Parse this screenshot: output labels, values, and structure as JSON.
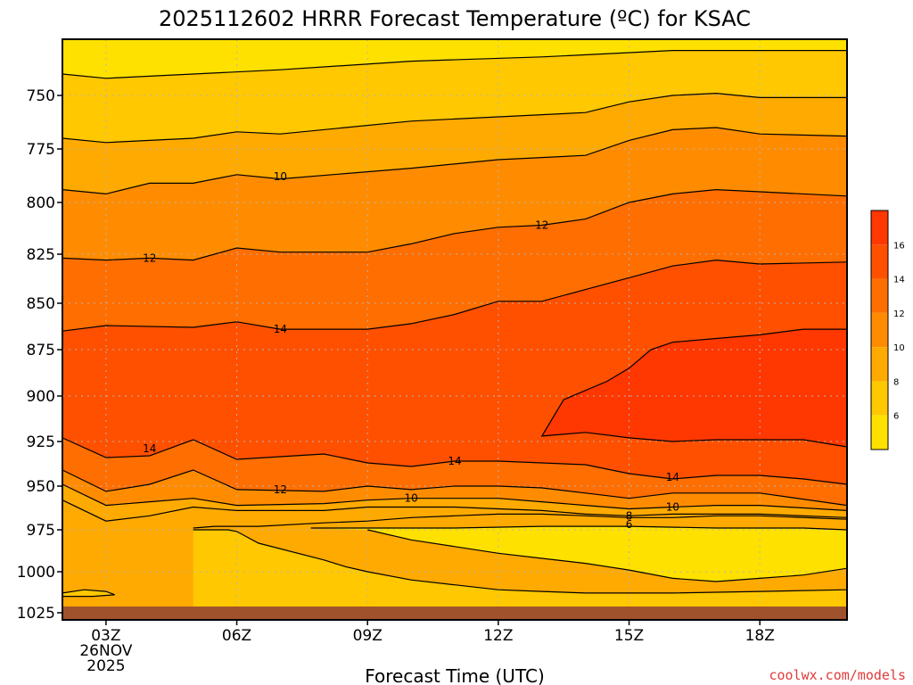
{
  "title": "2025112602 HRRR Forecast Temperature (ºC) for KSAC",
  "credit": "coolwx.com/models",
  "xlabel": "Forecast Time (UTC)",
  "colors": {
    "background": "#ffffff",
    "ground": "#a0522d",
    "levels": [
      "#ffe100",
      "#ffc800",
      "#ffaa00",
      "#ff8c00",
      "#ff6e00",
      "#ff5000",
      "#ff3700"
    ],
    "credit": "#e03a3a"
  },
  "chart_data": {
    "type": "heatmap",
    "title": "2025112602 HRRR Forecast Temperature (ºC) for KSAC",
    "xlabel": "Forecast Time (UTC)",
    "ylabel": "",
    "x_tick_labels": [
      {
        "hour": 3,
        "lines": [
          "03Z",
          "26NOV",
          "2025"
        ]
      },
      {
        "hour": 6,
        "lines": [
          "06Z"
        ]
      },
      {
        "hour": 9,
        "lines": [
          "09Z"
        ]
      },
      {
        "hour": 12,
        "lines": [
          "12Z"
        ]
      },
      {
        "hour": 15,
        "lines": [
          "15Z"
        ]
      },
      {
        "hour": 18,
        "lines": [
          "18Z"
        ]
      }
    ],
    "x_range_hours": [
      2,
      20
    ],
    "y_ticks": [
      750,
      775,
      800,
      825,
      850,
      875,
      900,
      925,
      950,
      975,
      1000,
      1025
    ],
    "y_axis": "pressure (hPa), inverted",
    "colorbar_levels": [
      6,
      8,
      10,
      12,
      14,
      16
    ],
    "contour_labels": [
      "10",
      "12",
      "12",
      "14",
      "14",
      "14",
      "12",
      "10",
      "14",
      "10",
      "8",
      "6"
    ],
    "contours": [
      {
        "value": 6,
        "points": [
          [
            2,
            740
          ],
          [
            3,
            742
          ],
          [
            5,
            740
          ],
          [
            7,
            738
          ],
          [
            10,
            734
          ],
          [
            13,
            732
          ],
          [
            16,
            729
          ],
          [
            19,
            729
          ],
          [
            20,
            729
          ]
        ]
      },
      {
        "value": 8,
        "points": [
          [
            2,
            770
          ],
          [
            3,
            772
          ],
          [
            5,
            770
          ],
          [
            6,
            767
          ],
          [
            7,
            768
          ],
          [
            10,
            762
          ],
          [
            13,
            759
          ],
          [
            14,
            758
          ],
          [
            15,
            753
          ],
          [
            16,
            750
          ],
          [
            17,
            749
          ],
          [
            18,
            751
          ],
          [
            20,
            751
          ]
        ]
      },
      {
        "value": 10,
        "points": [
          [
            2,
            794
          ],
          [
            3,
            796
          ],
          [
            4,
            791
          ],
          [
            5,
            791
          ],
          [
            6,
            787
          ],
          [
            7,
            789
          ],
          [
            10,
            784
          ],
          [
            12,
            780
          ],
          [
            14,
            778
          ],
          [
            15,
            771
          ],
          [
            16,
            766
          ],
          [
            17,
            765
          ],
          [
            18,
            768
          ],
          [
            20,
            769
          ]
        ]
      },
      {
        "value": 12,
        "points": [
          [
            2,
            827
          ],
          [
            3,
            828
          ],
          [
            4,
            827
          ],
          [
            5,
            828
          ],
          [
            6,
            822
          ],
          [
            7,
            824
          ],
          [
            9,
            824
          ],
          [
            10,
            820
          ],
          [
            11,
            815
          ],
          [
            12,
            812
          ],
          [
            13,
            811
          ],
          [
            14,
            808
          ],
          [
            15,
            800
          ],
          [
            16,
            796
          ],
          [
            17,
            794
          ],
          [
            18,
            795
          ],
          [
            20,
            797
          ]
        ]
      },
      {
        "value": 14,
        "points": [
          [
            2,
            865
          ],
          [
            3,
            862
          ],
          [
            5,
            863
          ],
          [
            6,
            860
          ],
          [
            7,
            864
          ],
          [
            9,
            864
          ],
          [
            10,
            861
          ],
          [
            11,
            856
          ],
          [
            12,
            849
          ],
          [
            13,
            849
          ],
          [
            14,
            843
          ],
          [
            15,
            837
          ],
          [
            16,
            831
          ],
          [
            17,
            828
          ],
          [
            18,
            830
          ],
          [
            20,
            829
          ]
        ]
      },
      {
        "value": 16,
        "points": [
          [
            13,
            922
          ],
          [
            13.5,
            902
          ],
          [
            14.5,
            892
          ],
          [
            15,
            885
          ],
          [
            15.5,
            875
          ],
          [
            16,
            871
          ],
          [
            17,
            869
          ],
          [
            18,
            867
          ],
          [
            19,
            864
          ],
          [
            20,
            864
          ],
          [
            20,
            928
          ],
          [
            19,
            924
          ],
          [
            18,
            924
          ],
          [
            17,
            924
          ],
          [
            16,
            925
          ],
          [
            15,
            923
          ],
          [
            14,
            920
          ],
          [
            13,
            922
          ]
        ]
      },
      {
        "value": 14,
        "points": [
          [
            2,
            923
          ],
          [
            3,
            934
          ],
          [
            4,
            933
          ],
          [
            5,
            924
          ],
          [
            6,
            935
          ],
          [
            8,
            932
          ],
          [
            9,
            937
          ],
          [
            10,
            939
          ],
          [
            11,
            936
          ],
          [
            12,
            936
          ],
          [
            13,
            937
          ],
          [
            14,
            938
          ],
          [
            15,
            943
          ],
          [
            16,
            946
          ],
          [
            17,
            944
          ],
          [
            18,
            944
          ],
          [
            19,
            946
          ],
          [
            20,
            949
          ]
        ]
      },
      {
        "value": 12,
        "points": [
          [
            2,
            941
          ],
          [
            3,
            953
          ],
          [
            4,
            949
          ],
          [
            5,
            941
          ],
          [
            6,
            952
          ],
          [
            8,
            953
          ],
          [
            9,
            950
          ],
          [
            10,
            952
          ],
          [
            11,
            950
          ],
          [
            12,
            950
          ],
          [
            13,
            951
          ],
          [
            14,
            954
          ],
          [
            15,
            957
          ],
          [
            16,
            954
          ],
          [
            17,
            954
          ],
          [
            18,
            954
          ],
          [
            20,
            961
          ]
        ]
      },
      {
        "value": 10,
        "points": [
          [
            2,
            949
          ],
          [
            3,
            961
          ],
          [
            4,
            959
          ],
          [
            5,
            957
          ],
          [
            6,
            961
          ],
          [
            8,
            960
          ],
          [
            9,
            958
          ],
          [
            10,
            957
          ],
          [
            11,
            957
          ],
          [
            12,
            957
          ],
          [
            13,
            959
          ],
          [
            14,
            961
          ],
          [
            15,
            963
          ],
          [
            16,
            962
          ],
          [
            17,
            961
          ],
          [
            18,
            961
          ],
          [
            20,
            964
          ]
        ]
      },
      {
        "value": 8,
        "points": [
          [
            2,
            958
          ],
          [
            3,
            970
          ],
          [
            4,
            967
          ],
          [
            5,
            962
          ],
          [
            6,
            964
          ],
          [
            8,
            964
          ],
          [
            9,
            962
          ],
          [
            10,
            962
          ],
          [
            11,
            962
          ],
          [
            12,
            963
          ],
          [
            13,
            964
          ],
          [
            14,
            966
          ],
          [
            15,
            967
          ],
          [
            16,
            966
          ],
          [
            17,
            966
          ],
          [
            18,
            966
          ],
          [
            20,
            968
          ]
        ]
      },
      {
        "value": 6,
        "points": [
          [
            5,
            974
          ],
          [
            5.5,
            973
          ],
          [
            6.5,
            973
          ],
          [
            8,
            971
          ],
          [
            9,
            970
          ],
          [
            10,
            968
          ],
          [
            11,
            967
          ],
          [
            12,
            966
          ],
          [
            13,
            966
          ],
          [
            14,
            967
          ],
          [
            15,
            968
          ],
          [
            16,
            968
          ],
          [
            17,
            967
          ],
          [
            18,
            967
          ],
          [
            20,
            969
          ]
        ]
      },
      {
        "value": 6,
        "points": [
          [
            7.7,
            974
          ],
          [
            9,
            974
          ],
          [
            11,
            974
          ],
          [
            13,
            973
          ],
          [
            15,
            973
          ],
          [
            17,
            974
          ],
          [
            19,
            974
          ],
          [
            20,
            975
          ]
        ]
      },
      {
        "value": 8,
        "points": [
          [
            5,
            975
          ],
          [
            5.8,
            975
          ],
          [
            6,
            976
          ],
          [
            6.5,
            983
          ],
          [
            8,
            993
          ],
          [
            8.5,
            997
          ],
          [
            9,
            1000
          ],
          [
            10,
            1005
          ],
          [
            11,
            1008
          ],
          [
            12,
            1011
          ],
          [
            13,
            1012
          ],
          [
            14,
            1013
          ],
          [
            16,
            1013
          ],
          [
            18,
            1012
          ],
          [
            20,
            1011
          ]
        ]
      },
      {
        "value": 6,
        "points": [
          [
            9,
            975
          ],
          [
            10,
            981
          ],
          [
            11,
            985
          ],
          [
            12,
            989
          ],
          [
            13,
            992
          ],
          [
            14,
            995
          ],
          [
            15,
            999
          ],
          [
            16,
            1004
          ],
          [
            17,
            1006
          ],
          [
            18,
            1004
          ],
          [
            19,
            1002
          ],
          [
            20,
            998
          ]
        ]
      },
      {
        "value": 8,
        "points": [
          [
            2,
            1013
          ],
          [
            2.5,
            1011
          ],
          [
            3,
            1012
          ],
          [
            3.2,
            1014
          ],
          [
            2.7,
            1015
          ],
          [
            2,
            1015
          ]
        ]
      }
    ],
    "label_positions": [
      {
        "text": "10",
        "x": 7.0,
        "p": 788
      },
      {
        "text": "12",
        "x": 4.0,
        "p": 827
      },
      {
        "text": "12",
        "x": 13.0,
        "p": 811
      },
      {
        "text": "14",
        "x": 7.0,
        "p": 864
      },
      {
        "text": "14",
        "x": 4.0,
        "p": 929
      },
      {
        "text": "14",
        "x": 11.0,
        "p": 936
      },
      {
        "text": "12",
        "x": 7.0,
        "p": 952
      },
      {
        "text": "10",
        "x": 10.0,
        "p": 957
      },
      {
        "text": "14",
        "x": 16.0,
        "p": 945
      },
      {
        "text": "10",
        "x": 16.0,
        "p": 962
      },
      {
        "text": "8",
        "x": 15.0,
        "p": 967
      },
      {
        "text": "6",
        "x": 15.0,
        "p": 972
      }
    ],
    "ground_p": 1025,
    "grid": true
  }
}
